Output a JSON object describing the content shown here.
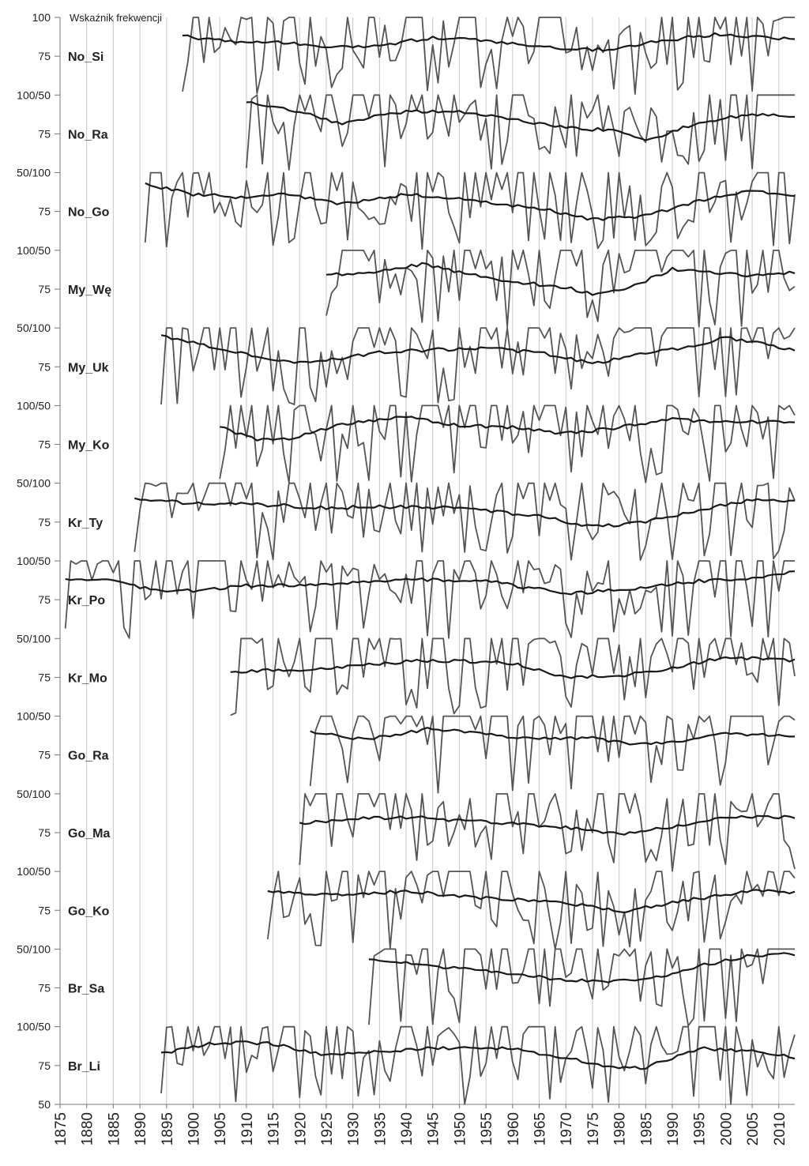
{
  "chart_data": {
    "type": "line",
    "title": "",
    "legend": {
      "text": "Wskaźnik frekwencji"
    },
    "xlabel": "",
    "ylabel": "",
    "xlim": [
      1875,
      2013
    ],
    "x_ticks": [
      "1875",
      "1880",
      "1885",
      "1890",
      "1895",
      "1900",
      "1905",
      "1910",
      "1915",
      "1920",
      "1925",
      "1930",
      "1935",
      "1940",
      "1945",
      "1950",
      "1955",
      "1960",
      "1965",
      "1970",
      "1975",
      "1980",
      "1985",
      "1990",
      "1995",
      "2000",
      "2005",
      "2010"
    ],
    "y_ticks_per_panel": [
      [
        "100",
        "75"
      ],
      [
        "100/50",
        "75"
      ],
      [
        "50/100",
        "75"
      ],
      [
        "100/50",
        "75"
      ],
      [
        "50/100",
        "75"
      ],
      [
        "100/50",
        "75"
      ],
      [
        "50/100",
        "75"
      ],
      [
        "100/50",
        "75"
      ],
      [
        "50/100",
        "75"
      ],
      [
        "100/50",
        "75"
      ],
      [
        "50/100",
        "75"
      ],
      [
        "100/50",
        "75"
      ],
      [
        "50/100",
        "75"
      ],
      [
        "100/50",
        "75",
        "50"
      ]
    ],
    "ylim_per_panel": [
      50,
      100
    ],
    "grid": {
      "vertical": true,
      "horizontal": false
    },
    "panels": [
      {
        "name": "No_Si",
        "start": 1898,
        "end": 2013,
        "seed": 11,
        "trend": [
          [
            1898,
            88
          ],
          [
            1905,
            85
          ],
          [
            1915,
            84
          ],
          [
            1925,
            81
          ],
          [
            1933,
            81
          ],
          [
            1945,
            87
          ],
          [
            1955,
            85
          ],
          [
            1970,
            80
          ],
          [
            1978,
            79
          ],
          [
            1988,
            85
          ],
          [
            1998,
            89
          ],
          [
            2005,
            88
          ],
          [
            2013,
            86
          ]
        ]
      },
      {
        "name": "No_Ra",
        "start": 1910,
        "end": 2013,
        "seed": 23,
        "trend": [
          [
            1910,
            95
          ],
          [
            1920,
            89
          ],
          [
            1928,
            81
          ],
          [
            1938,
            89
          ],
          [
            1948,
            90
          ],
          [
            1955,
            87
          ],
          [
            1962,
            83
          ],
          [
            1970,
            79
          ],
          [
            1980,
            77
          ],
          [
            1985,
            71
          ],
          [
            1995,
            82
          ],
          [
            2005,
            88
          ],
          [
            2013,
            86
          ]
        ]
      },
      {
        "name": "No_Go",
        "start": 1891,
        "end": 2013,
        "seed": 37,
        "trend": [
          [
            1891,
            93
          ],
          [
            1900,
            86
          ],
          [
            1910,
            84
          ],
          [
            1918,
            86
          ],
          [
            1928,
            80
          ],
          [
            1940,
            86
          ],
          [
            1950,
            83
          ],
          [
            1965,
            77
          ],
          [
            1975,
            70
          ],
          [
            1985,
            72
          ],
          [
            1995,
            82
          ],
          [
            2005,
            88
          ],
          [
            2013,
            85
          ]
        ]
      },
      {
        "name": "My_Wę",
        "start": 1925,
        "end": 2013,
        "seed": 41,
        "trend": [
          [
            1925,
            84
          ],
          [
            1935,
            86
          ],
          [
            1943,
            91
          ],
          [
            1950,
            86
          ],
          [
            1960,
            80
          ],
          [
            1970,
            76
          ],
          [
            1975,
            72
          ],
          [
            1982,
            76
          ],
          [
            1990,
            88
          ],
          [
            2000,
            85
          ],
          [
            2005,
            84
          ],
          [
            2013,
            86
          ]
        ]
      },
      {
        "name": "My_Uk",
        "start": 1894,
        "end": 2013,
        "seed": 53,
        "trend": [
          [
            1894,
            95
          ],
          [
            1905,
            87
          ],
          [
            1915,
            79
          ],
          [
            1922,
            78
          ],
          [
            1935,
            84
          ],
          [
            1945,
            86
          ],
          [
            1955,
            87
          ],
          [
            1965,
            84
          ],
          [
            1975,
            77
          ],
          [
            1985,
            84
          ],
          [
            1995,
            88
          ],
          [
            2000,
            94
          ],
          [
            2013,
            86
          ]
        ]
      },
      {
        "name": "My_Ko",
        "start": 1905,
        "end": 2013,
        "seed": 67,
        "trend": [
          [
            1905,
            86
          ],
          [
            1912,
            78
          ],
          [
            1918,
            78
          ],
          [
            1928,
            88
          ],
          [
            1940,
            93
          ],
          [
            1950,
            87
          ],
          [
            1960,
            86
          ],
          [
            1970,
            82
          ],
          [
            1978,
            85
          ],
          [
            1990,
            91
          ],
          [
            2000,
            89
          ],
          [
            2013,
            90
          ]
        ]
      },
      {
        "name": "Kr_Ty",
        "start": 1889,
        "end": 2013,
        "seed": 71,
        "trend": [
          [
            1889,
            90
          ],
          [
            1900,
            87
          ],
          [
            1915,
            86
          ],
          [
            1925,
            84
          ],
          [
            1935,
            85
          ],
          [
            1950,
            84
          ],
          [
            1965,
            79
          ],
          [
            1975,
            72
          ],
          [
            1985,
            75
          ],
          [
            1995,
            83
          ],
          [
            2005,
            89
          ],
          [
            2013,
            89
          ]
        ]
      },
      {
        "name": "Kr_Po",
        "start": 1876,
        "end": 2013,
        "seed": 83,
        "trend": [
          [
            1876,
            88
          ],
          [
            1885,
            87
          ],
          [
            1893,
            81
          ],
          [
            1900,
            81
          ],
          [
            1910,
            84
          ],
          [
            1925,
            85
          ],
          [
            1940,
            88
          ],
          [
            1955,
            87
          ],
          [
            1970,
            79
          ],
          [
            1980,
            81
          ],
          [
            1995,
            87
          ],
          [
            2005,
            89
          ],
          [
            2013,
            93
          ]
        ]
      },
      {
        "name": "Kr_Mo",
        "start": 1907,
        "end": 2013,
        "seed": 97,
        "trend": [
          [
            1907,
            78
          ],
          [
            1915,
            80
          ],
          [
            1925,
            80
          ],
          [
            1935,
            84
          ],
          [
            1945,
            86
          ],
          [
            1960,
            84
          ],
          [
            1970,
            75
          ],
          [
            1980,
            76
          ],
          [
            1990,
            81
          ],
          [
            2000,
            88
          ],
          [
            2013,
            86
          ]
        ]
      },
      {
        "name": "Go_Ra",
        "start": 1922,
        "end": 2013,
        "seed": 103,
        "trend": [
          [
            1922,
            90
          ],
          [
            1932,
            85
          ],
          [
            1945,
            92
          ],
          [
            1955,
            88
          ],
          [
            1965,
            86
          ],
          [
            1975,
            86
          ],
          [
            1983,
            82
          ],
          [
            1992,
            84
          ],
          [
            2000,
            89
          ],
          [
            2013,
            87
          ]
        ]
      },
      {
        "name": "Go_Ma",
        "start": 1920,
        "end": 2013,
        "seed": 113,
        "trend": [
          [
            1920,
            81
          ],
          [
            1930,
            84
          ],
          [
            1940,
            85
          ],
          [
            1950,
            83
          ],
          [
            1960,
            81
          ],
          [
            1970,
            78
          ],
          [
            1980,
            74
          ],
          [
            1990,
            79
          ],
          [
            2000,
            85
          ],
          [
            2013,
            85
          ]
        ]
      },
      {
        "name": "Go_Ko",
        "start": 1914,
        "end": 2013,
        "seed": 127,
        "trend": [
          [
            1914,
            87
          ],
          [
            1925,
            85
          ],
          [
            1940,
            87
          ],
          [
            1955,
            83
          ],
          [
            1970,
            80
          ],
          [
            1980,
            74
          ],
          [
            1990,
            80
          ],
          [
            2000,
            85
          ],
          [
            2005,
            88
          ],
          [
            2013,
            86
          ]
        ]
      },
      {
        "name": "Br_Sa",
        "start": 1933,
        "end": 2013,
        "seed": 131,
        "trend": [
          [
            1933,
            93
          ],
          [
            1943,
            90
          ],
          [
            1955,
            86
          ],
          [
            1965,
            82
          ],
          [
            1975,
            79
          ],
          [
            1985,
            80
          ],
          [
            1995,
            89
          ],
          [
            2005,
            96
          ],
          [
            2013,
            97
          ]
        ]
      },
      {
        "name": "Br_Li",
        "start": 1894,
        "end": 2013,
        "seed": 139,
        "trend": [
          [
            1894,
            83
          ],
          [
            1905,
            90
          ],
          [
            1915,
            89
          ],
          [
            1925,
            82
          ],
          [
            1935,
            84
          ],
          [
            1945,
            86
          ],
          [
            1960,
            86
          ],
          [
            1970,
            80
          ],
          [
            1980,
            73
          ],
          [
            1985,
            74
          ],
          [
            1995,
            86
          ],
          [
            2005,
            84
          ],
          [
            2013,
            80
          ]
        ]
      }
    ]
  }
}
